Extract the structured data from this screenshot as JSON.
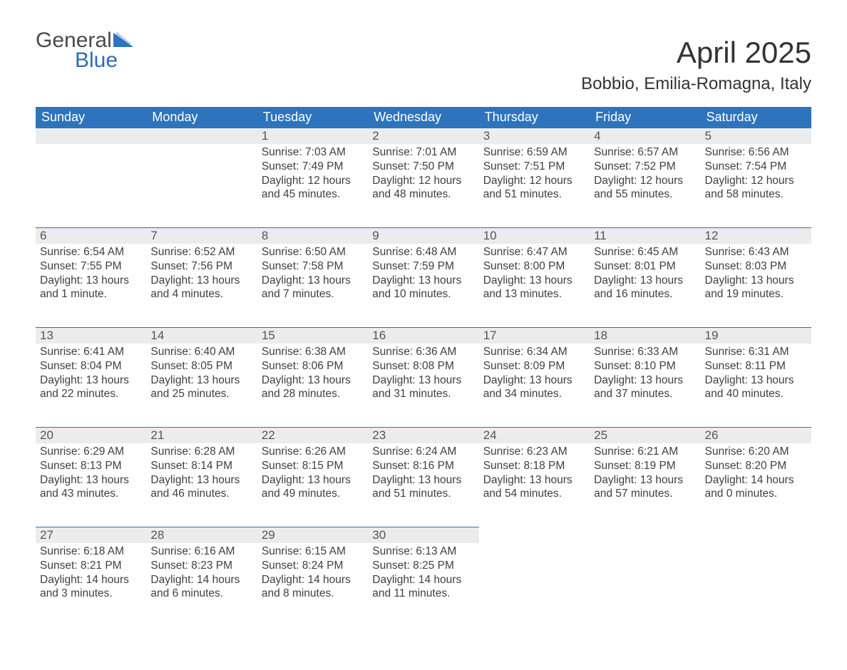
{
  "brand": {
    "text1": "General",
    "text2": "Blue",
    "triangle_color": "#2d74bd"
  },
  "title": "April 2025",
  "subtitle": "Bobbio, Emilia-Romagna, Italy",
  "colors": {
    "header_bg": "#2d74bd",
    "header_text": "#ffffff",
    "daynum_bg": "#ececec",
    "border": "#2d74bd",
    "text": "#3a3a3a"
  },
  "weekdays": [
    "Sunday",
    "Monday",
    "Tuesday",
    "Wednesday",
    "Thursday",
    "Friday",
    "Saturday"
  ],
  "leading_blanks": 2,
  "days": [
    {
      "n": 1,
      "sunrise": "7:03 AM",
      "sunset": "7:49 PM",
      "daylight": "12 hours and 45 minutes."
    },
    {
      "n": 2,
      "sunrise": "7:01 AM",
      "sunset": "7:50 PM",
      "daylight": "12 hours and 48 minutes."
    },
    {
      "n": 3,
      "sunrise": "6:59 AM",
      "sunset": "7:51 PM",
      "daylight": "12 hours and 51 minutes."
    },
    {
      "n": 4,
      "sunrise": "6:57 AM",
      "sunset": "7:52 PM",
      "daylight": "12 hours and 55 minutes."
    },
    {
      "n": 5,
      "sunrise": "6:56 AM",
      "sunset": "7:54 PM",
      "daylight": "12 hours and 58 minutes."
    },
    {
      "n": 6,
      "sunrise": "6:54 AM",
      "sunset": "7:55 PM",
      "daylight": "13 hours and 1 minute."
    },
    {
      "n": 7,
      "sunrise": "6:52 AM",
      "sunset": "7:56 PM",
      "daylight": "13 hours and 4 minutes."
    },
    {
      "n": 8,
      "sunrise": "6:50 AM",
      "sunset": "7:58 PM",
      "daylight": "13 hours and 7 minutes."
    },
    {
      "n": 9,
      "sunrise": "6:48 AM",
      "sunset": "7:59 PM",
      "daylight": "13 hours and 10 minutes."
    },
    {
      "n": 10,
      "sunrise": "6:47 AM",
      "sunset": "8:00 PM",
      "daylight": "13 hours and 13 minutes."
    },
    {
      "n": 11,
      "sunrise": "6:45 AM",
      "sunset": "8:01 PM",
      "daylight": "13 hours and 16 minutes."
    },
    {
      "n": 12,
      "sunrise": "6:43 AM",
      "sunset": "8:03 PM",
      "daylight": "13 hours and 19 minutes."
    },
    {
      "n": 13,
      "sunrise": "6:41 AM",
      "sunset": "8:04 PM",
      "daylight": "13 hours and 22 minutes."
    },
    {
      "n": 14,
      "sunrise": "6:40 AM",
      "sunset": "8:05 PM",
      "daylight": "13 hours and 25 minutes."
    },
    {
      "n": 15,
      "sunrise": "6:38 AM",
      "sunset": "8:06 PM",
      "daylight": "13 hours and 28 minutes."
    },
    {
      "n": 16,
      "sunrise": "6:36 AM",
      "sunset": "8:08 PM",
      "daylight": "13 hours and 31 minutes."
    },
    {
      "n": 17,
      "sunrise": "6:34 AM",
      "sunset": "8:09 PM",
      "daylight": "13 hours and 34 minutes."
    },
    {
      "n": 18,
      "sunrise": "6:33 AM",
      "sunset": "8:10 PM",
      "daylight": "13 hours and 37 minutes."
    },
    {
      "n": 19,
      "sunrise": "6:31 AM",
      "sunset": "8:11 PM",
      "daylight": "13 hours and 40 minutes."
    },
    {
      "n": 20,
      "sunrise": "6:29 AM",
      "sunset": "8:13 PM",
      "daylight": "13 hours and 43 minutes."
    },
    {
      "n": 21,
      "sunrise": "6:28 AM",
      "sunset": "8:14 PM",
      "daylight": "13 hours and 46 minutes."
    },
    {
      "n": 22,
      "sunrise": "6:26 AM",
      "sunset": "8:15 PM",
      "daylight": "13 hours and 49 minutes."
    },
    {
      "n": 23,
      "sunrise": "6:24 AM",
      "sunset": "8:16 PM",
      "daylight": "13 hours and 51 minutes."
    },
    {
      "n": 24,
      "sunrise": "6:23 AM",
      "sunset": "8:18 PM",
      "daylight": "13 hours and 54 minutes."
    },
    {
      "n": 25,
      "sunrise": "6:21 AM",
      "sunset": "8:19 PM",
      "daylight": "13 hours and 57 minutes."
    },
    {
      "n": 26,
      "sunrise": "6:20 AM",
      "sunset": "8:20 PM",
      "daylight": "14 hours and 0 minutes."
    },
    {
      "n": 27,
      "sunrise": "6:18 AM",
      "sunset": "8:21 PM",
      "daylight": "14 hours and 3 minutes."
    },
    {
      "n": 28,
      "sunrise": "6:16 AM",
      "sunset": "8:23 PM",
      "daylight": "14 hours and 6 minutes."
    },
    {
      "n": 29,
      "sunrise": "6:15 AM",
      "sunset": "8:24 PM",
      "daylight": "14 hours and 8 minutes."
    },
    {
      "n": 30,
      "sunrise": "6:13 AM",
      "sunset": "8:25 PM",
      "daylight": "14 hours and 11 minutes."
    }
  ],
  "labels": {
    "sunrise": "Sunrise:",
    "sunset": "Sunset:",
    "daylight": "Daylight:"
  }
}
